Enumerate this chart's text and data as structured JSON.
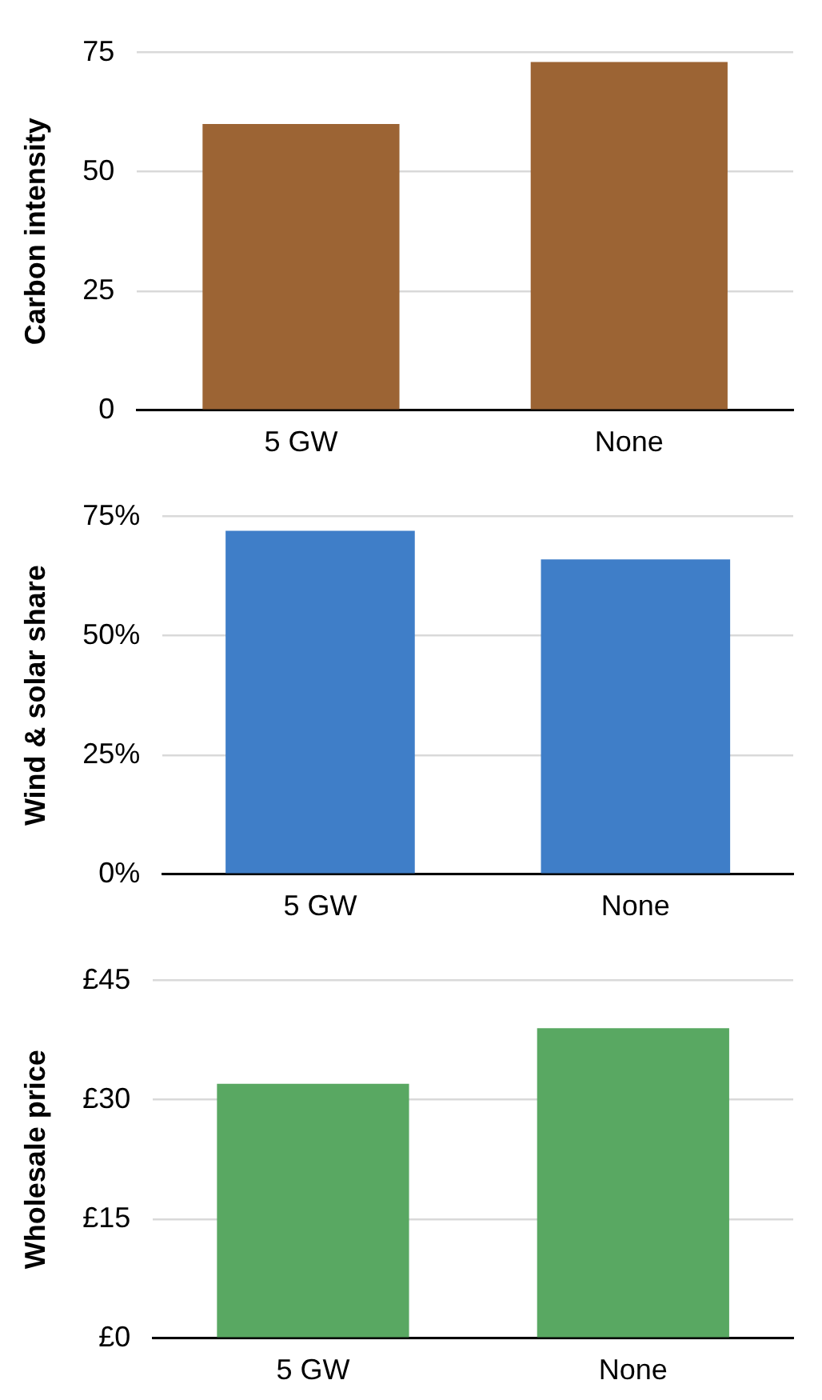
{
  "chart_data": [
    {
      "type": "bar",
      "ylabel": "Carbon intensity",
      "categories": [
        "5 GW",
        "None"
      ],
      "values": [
        60,
        73
      ],
      "color": "#9c6434",
      "ylim": [
        0,
        75
      ],
      "yticks": [
        0,
        25,
        50,
        75
      ],
      "grid": "y"
    },
    {
      "type": "bar",
      "ylabel": "Wind & solar share",
      "categories": [
        "5 GW",
        "None"
      ],
      "values": [
        72,
        66
      ],
      "color": "#3f7ec8",
      "ylim": [
        0,
        75
      ],
      "yticks": [
        {
          "value": 0,
          "label": "0%"
        },
        {
          "value": 25,
          "label": "25%"
        },
        {
          "value": 50,
          "label": "50%"
        },
        {
          "value": 75,
          "label": "75%"
        }
      ],
      "grid": "y"
    },
    {
      "type": "bar",
      "ylabel": "Wholesale price",
      "categories": [
        "5 GW",
        "None"
      ],
      "values": [
        32,
        39
      ],
      "color": "#59a862",
      "ylim": [
        0,
        45
      ],
      "yticks": [
        {
          "value": 0,
          "label": "£0"
        },
        {
          "value": 15,
          "label": "£15"
        },
        {
          "value": 30,
          "label": "£30"
        },
        {
          "value": 45,
          "label": "£45"
        }
      ],
      "grid": "y"
    }
  ]
}
